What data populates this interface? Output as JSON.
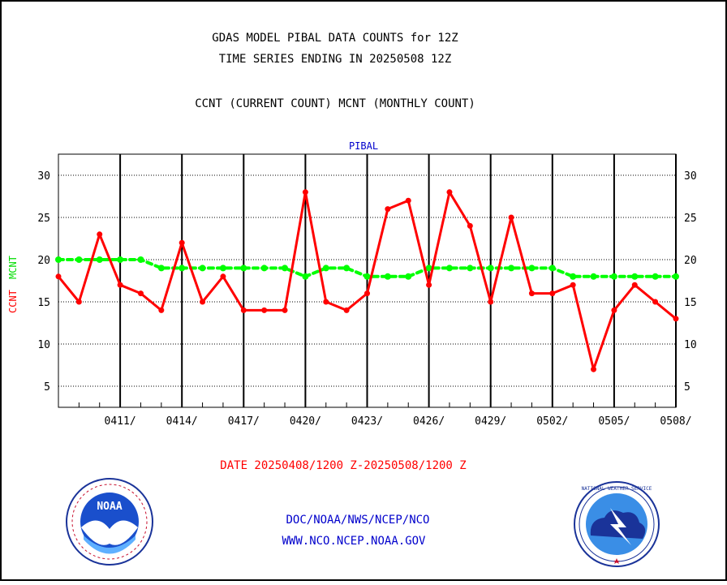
{
  "header": {
    "title_line1": "GDAS MODEL PIBAL DATA COUNTS for 12Z",
    "title_line2": "TIME SERIES ENDING IN 20250508 12Z",
    "subtitle": "CCNT (CURRENT COUNT) MCNT (MONTHLY COUNT)"
  },
  "footer": {
    "date_range": "DATE 20250408/1200 Z-20250508/1200 Z",
    "org_line": "DOC/NOAA/NWS/NCEP/NCO",
    "url_line": "WWW.NCO.NCEP.NOAA.GOV",
    "logo_left_text": "NOAA",
    "logo_right_text": "NATIONAL WEATHER SERVICE"
  },
  "colors": {
    "ccnt": "#ff0000",
    "mcnt": "#00ff00",
    "panel_title": "#0000cc",
    "footer_text": "#0000cc",
    "date_text": "#ff0000"
  },
  "chart_data": {
    "type": "line",
    "panel_title": "PIBAL",
    "ylabel_ccnt": "CCNT",
    "ylabel_mcnt": "MCNT",
    "ylim": [
      2.5,
      32.5
    ],
    "yticks": [
      5,
      10,
      15,
      20,
      25,
      30
    ],
    "x_start": "2025-04-08",
    "x_end": "2025-05-08",
    "xtick_labels": [
      "0411/",
      "0414/",
      "0417/",
      "0420/",
      "0423/",
      "0426/",
      "0429/",
      "0502/",
      "0505/",
      "0508/"
    ],
    "grid": true,
    "series": [
      {
        "name": "CCNT",
        "values": [
          18,
          15,
          23,
          17,
          16,
          14,
          22,
          15,
          18,
          14,
          14,
          14,
          28,
          15,
          14,
          16,
          26,
          27,
          17,
          28,
          24,
          15,
          25,
          16,
          16,
          17,
          7,
          14,
          17,
          15,
          13
        ]
      },
      {
        "name": "MCNT",
        "values": [
          20,
          20,
          20,
          20,
          20,
          19,
          19,
          19,
          19,
          19,
          19,
          19,
          18,
          19,
          19,
          18,
          18,
          18,
          19,
          19,
          19,
          19,
          19,
          19,
          19,
          18,
          18,
          18,
          18,
          18,
          18
        ]
      }
    ]
  }
}
